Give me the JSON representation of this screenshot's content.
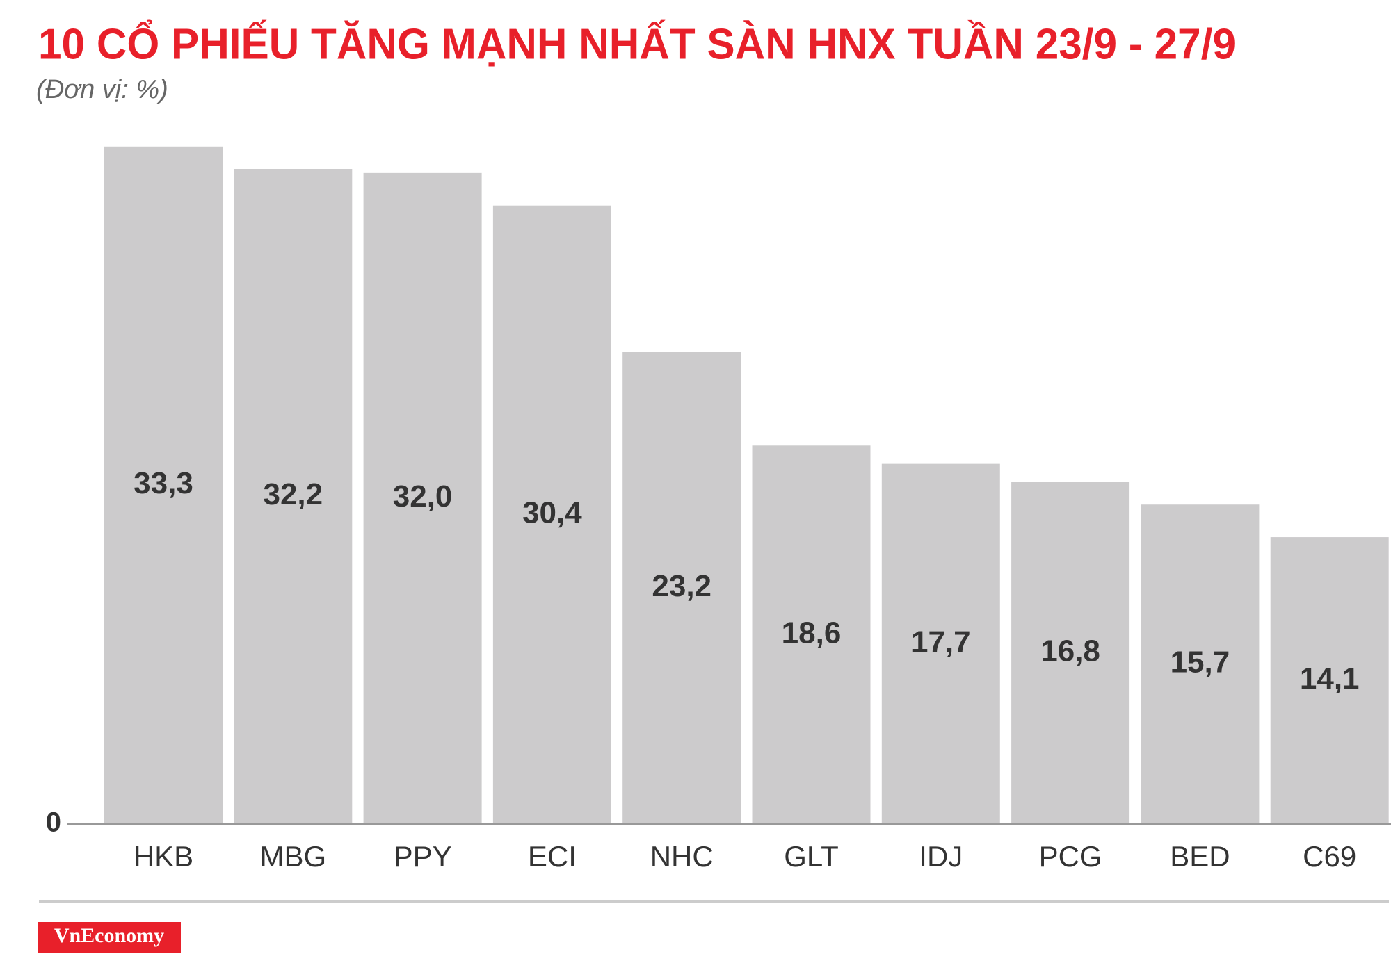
{
  "chart_data": {
    "type": "bar",
    "title": "10 CỔ PHIẾU TĂNG MẠNH NHẤT SÀN HNX TUẦN 23/9 - 27/9",
    "subtitle": "(Đơn vị: %)",
    "categories": [
      "HKB",
      "MBG",
      "PPY",
      "ECI",
      "NHC",
      "GLT",
      "IDJ",
      "PCG",
      "BED",
      "C69"
    ],
    "values": [
      33.3,
      32.2,
      32.0,
      30.4,
      23.2,
      18.6,
      17.7,
      16.8,
      15.7,
      14.1
    ],
    "value_labels": [
      "33,3",
      "32,2",
      "32,0",
      "30,4",
      "23,2",
      "18,6",
      "17,7",
      "16,8",
      "15,7",
      "14,1"
    ],
    "color": "#cccbcc",
    "ylim": [
      0,
      35
    ],
    "yticks": [
      0
    ],
    "grid": false
  },
  "brand": "VnEconomy"
}
